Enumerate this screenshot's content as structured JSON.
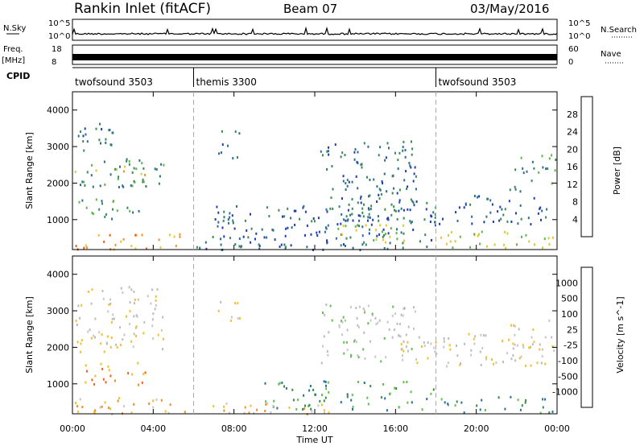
{
  "header": {
    "station": "Rankin Inlet (fitACF)",
    "beam": "Beam 07",
    "date": "03/May/2016"
  },
  "strip": {
    "nsky_label": "N.Sky",
    "nsky_ticks": [
      "10^5",
      "10^0"
    ],
    "nsearch_label": "N.Search",
    "nsearch_ticks": [
      "10^5",
      "10^0"
    ],
    "freq_label": "Freq.",
    "freq_unit": "[MHz]",
    "freq_ticks": [
      "18",
      "8"
    ],
    "nave_label": "Nave",
    "nave_ticks": [
      "60",
      "0"
    ],
    "cpid_label": "CPID",
    "cpid_segments": [
      {
        "name": "twofsound 3503",
        "start_h": 0,
        "end_h": 6
      },
      {
        "name": "themis 3300",
        "start_h": 6,
        "end_h": 18
      },
      {
        "name": "twofsound 3503",
        "start_h": 18,
        "end_h": 24
      }
    ]
  },
  "chart_data": [
    {
      "type": "heatmap",
      "quantity": "Power",
      "xlabel": "Time UT",
      "ylabel": "Slant Range [km]",
      "xlim": [
        0,
        24
      ],
      "ylim": [
        180,
        4500
      ],
      "x_ticks": [
        "00:00",
        "04:00",
        "08:00",
        "12:00",
        "16:00",
        "20:00",
        "00:00"
      ],
      "y_ticks": [
        1000,
        2000,
        3000,
        4000
      ],
      "colorbar": {
        "label": "Power [dB]",
        "tick_labels": [
          "4",
          "8",
          "12",
          "16",
          "20",
          "24",
          "28"
        ],
        "colors": [
          "#1a1aff",
          "#1f3fb0",
          "#2e6e8e",
          "#3a8a5a",
          "#62b54a",
          "#c9d23a",
          "#f2c02a",
          "#f09030",
          "#f05a20",
          "#e01010"
        ]
      },
      "regions": [
        {
          "t0": 0.1,
          "t1": 2.0,
          "r0": 2900,
          "r1": 3700,
          "level": 2
        },
        {
          "t0": 0.1,
          "t1": 4.2,
          "r0": 2200,
          "r1": 2500,
          "level": 6
        },
        {
          "t0": 0.3,
          "t1": 4.5,
          "r0": 1900,
          "r1": 2700,
          "level": 3
        },
        {
          "t0": 0.2,
          "t1": 3.5,
          "r0": 1000,
          "r1": 1600,
          "level": 3
        },
        {
          "t0": 0.1,
          "t1": 5.5,
          "r0": 200,
          "r1": 650,
          "level": 7
        },
        {
          "t0": 7.2,
          "t1": 8.3,
          "r0": 2700,
          "r1": 3500,
          "level": 2
        },
        {
          "t0": 6.1,
          "t1": 18.0,
          "r0": 200,
          "r1": 1400,
          "level": 2
        },
        {
          "t0": 12.2,
          "t1": 17.0,
          "r0": 1700,
          "r1": 3200,
          "level": 2
        },
        {
          "t0": 13.0,
          "t1": 16.5,
          "r0": 400,
          "r1": 900,
          "level": 5
        },
        {
          "t0": 12.5,
          "t1": 23.5,
          "r0": 900,
          "r1": 1700,
          "level": 2
        },
        {
          "t0": 18.2,
          "t1": 23.8,
          "r0": 200,
          "r1": 700,
          "level": 5
        },
        {
          "t0": 21.5,
          "t1": 23.9,
          "r0": 1800,
          "r1": 2800,
          "level": 3
        }
      ]
    },
    {
      "type": "heatmap",
      "quantity": "Velocity",
      "xlabel": "Time UT",
      "ylabel": "Slant Range [km]",
      "xlim": [
        0,
        24
      ],
      "ylim": [
        180,
        4500
      ],
      "x_ticks": [
        "00:00",
        "04:00",
        "08:00",
        "12:00",
        "16:00",
        "20:00",
        "00:00"
      ],
      "y_ticks": [
        1000,
        2000,
        3000,
        4000
      ],
      "colorbar": {
        "label": "Velocity [m s^-1]",
        "tick_labels": [
          "1000",
          "500",
          "100",
          "25",
          "-25",
          "-100",
          "-500",
          "-1000"
        ],
        "colors": [
          "#1a3aa8",
          "#2e6e9e",
          "#3a8a4a",
          "#62c050",
          "#bcbcbc",
          "#c8c8c8",
          "#f2c02a",
          "#f09020",
          "#f06018",
          "#e01010"
        ]
      },
      "regions": [
        {
          "t0": 0.1,
          "t1": 4.5,
          "r0": 1900,
          "r1": 3700,
          "level": 4
        },
        {
          "t0": 0.2,
          "t1": 3.6,
          "r0": 1000,
          "r1": 1600,
          "level": 2
        },
        {
          "t0": 0.1,
          "t1": 5.5,
          "r0": 200,
          "r1": 650,
          "level": 3
        },
        {
          "t0": 7.2,
          "t1": 8.3,
          "r0": 2700,
          "r1": 3400,
          "level": 4
        },
        {
          "t0": 12.2,
          "t1": 17.0,
          "r0": 1600,
          "r1": 3200,
          "level": 5
        },
        {
          "t0": 16.0,
          "t1": 23.5,
          "r0": 1500,
          "r1": 2400,
          "level": 4
        },
        {
          "t0": 9.5,
          "t1": 18.0,
          "r0": 300,
          "r1": 1100,
          "level": 7
        },
        {
          "t0": 5.5,
          "t1": 13.0,
          "r0": 180,
          "r1": 500,
          "level": 3
        },
        {
          "t0": 18.2,
          "t1": 23.8,
          "r0": 200,
          "r1": 700,
          "level": 7
        },
        {
          "t0": 21.5,
          "t1": 23.9,
          "r0": 1800,
          "r1": 2800,
          "level": 4
        }
      ]
    }
  ]
}
